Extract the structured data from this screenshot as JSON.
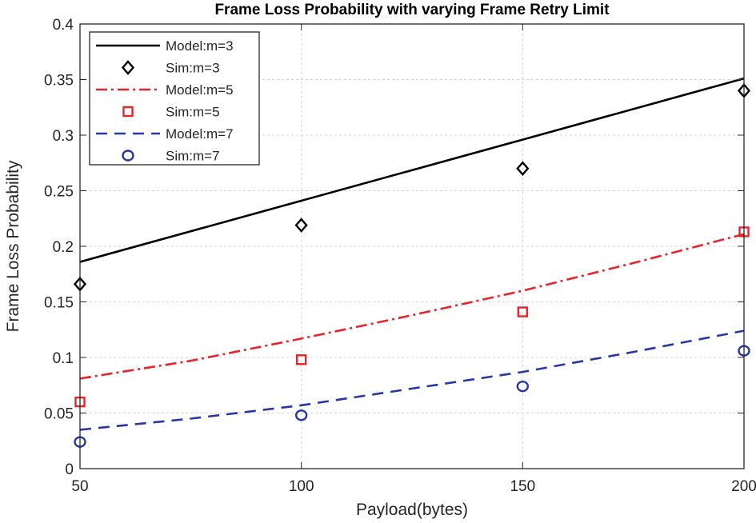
{
  "chart_data": {
    "type": "line",
    "title": "Frame Loss Probability with varying Frame Retry Limit",
    "xlabel": "Payload(bytes)",
    "ylabel": "Frame Loss Probability",
    "xlim": [
      50,
      200
    ],
    "ylim": [
      0,
      0.4
    ],
    "xticks": [
      50,
      100,
      150,
      200
    ],
    "yticks": [
      0,
      0.05,
      0.1,
      0.15,
      0.2,
      0.25,
      0.3,
      0.35,
      0.4
    ],
    "xtick_labels": [
      "50",
      "100",
      "150",
      "200"
    ],
    "ytick_labels": [
      "0",
      "0.05",
      "0.1",
      "0.15",
      "0.2",
      "0.25",
      "0.3",
      "0.35",
      "0.4"
    ],
    "grid": true,
    "legend_position": "top-left",
    "series": [
      {
        "name": "Model:m=3",
        "kind": "line",
        "style": "solid",
        "color": "#000000",
        "x": [
          50,
          100,
          150,
          200
        ],
        "y": [
          0.186,
          0.241,
          0.296,
          0.351
        ]
      },
      {
        "name": "Sim:m=3",
        "kind": "scatter",
        "marker": "diamond",
        "color": "#000000",
        "x": [
          50,
          100,
          150,
          200
        ],
        "y": [
          0.166,
          0.219,
          0.27,
          0.34
        ]
      },
      {
        "name": "Model:m=5",
        "kind": "line",
        "style": "dashdot",
        "color": "#e8232a",
        "x": [
          50,
          75,
          100,
          125,
          150,
          175,
          200
        ],
        "y": [
          0.081,
          0.097,
          0.117,
          0.138,
          0.16,
          0.185,
          0.211
        ]
      },
      {
        "name": "Sim:m=5",
        "kind": "scatter",
        "marker": "square",
        "color": "#e8232a",
        "x": [
          50,
          100,
          150,
          200
        ],
        "y": [
          0.06,
          0.098,
          0.141,
          0.213
        ]
      },
      {
        "name": "Model:m=7",
        "kind": "line",
        "style": "dashed",
        "color": "#2637a8",
        "x": [
          50,
          75,
          100,
          125,
          150,
          175,
          200
        ],
        "y": [
          0.035,
          0.045,
          0.057,
          0.072,
          0.087,
          0.105,
          0.124
        ]
      },
      {
        "name": "Sim:m=7",
        "kind": "scatter",
        "marker": "circle",
        "color": "#2637a8",
        "x": [
          50,
          100,
          150,
          200
        ],
        "y": [
          0.024,
          0.048,
          0.074,
          0.106
        ]
      }
    ]
  }
}
